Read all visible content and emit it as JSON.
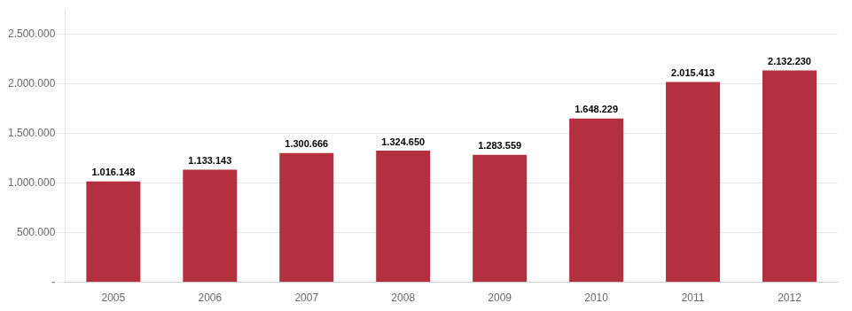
{
  "chart_data": {
    "type": "bar",
    "categories": [
      "2005",
      "2006",
      "2007",
      "2008",
      "2009",
      "2010",
      "2011",
      "2012"
    ],
    "values": [
      1016148,
      1133143,
      1300666,
      1324650,
      1283559,
      1648229,
      2015413,
      2132230
    ],
    "value_labels": [
      "1.016.148",
      "1.133.143",
      "1.300.666",
      "1.324.650",
      "1.283.559",
      "1.648.229",
      "2.015.413",
      "2.132.230"
    ],
    "data_labels": true,
    "color": "#B23040",
    "ylim": [
      0,
      2750000
    ],
    "yticks": [
      {
        "value": 0,
        "label": "-"
      },
      {
        "value": 500000,
        "label": "500.000"
      },
      {
        "value": 1000000,
        "label": "1.000.000"
      },
      {
        "value": 1500000,
        "label": "1.500.000"
      },
      {
        "value": 2000000,
        "label": "2.000.000"
      },
      {
        "value": 2500000,
        "label": "2.500.000"
      }
    ],
    "grid": true
  }
}
